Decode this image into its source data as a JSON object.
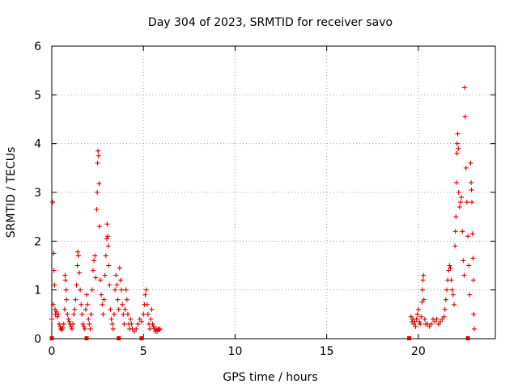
{
  "chart_data": {
    "type": "scatter",
    "title": "Day 304 of 2023, SRMTID for receiver savo",
    "xlabel": "GPS time / hours",
    "ylabel": "SRMTID / TECUs",
    "xlim": [
      0,
      24.2
    ],
    "ylim": [
      0,
      6
    ],
    "xticks": [
      0,
      5,
      10,
      15,
      20
    ],
    "yticks": [
      0,
      1,
      2,
      3,
      4,
      5,
      6
    ],
    "grid": true,
    "marker": "+",
    "color": "#e00000",
    "series": [
      {
        "name": "SRMTID",
        "points": [
          [
            0.0,
            0.4
          ],
          [
            0.05,
            2.8
          ],
          [
            0.08,
            0.7
          ],
          [
            0.1,
            1.75
          ],
          [
            0.12,
            1.4
          ],
          [
            0.15,
            1.1
          ],
          [
            0.18,
            0.6
          ],
          [
            0.2,
            0.5
          ],
          [
            0.25,
            0.55
          ],
          [
            0.3,
            0.45
          ],
          [
            0.35,
            0.5
          ],
          [
            0.4,
            0.3
          ],
          [
            0.45,
            0.25
          ],
          [
            0.5,
            0.2
          ],
          [
            0.55,
            0.18
          ],
          [
            0.6,
            0.22
          ],
          [
            0.65,
            0.3
          ],
          [
            0.7,
            0.6
          ],
          [
            0.72,
            1.3
          ],
          [
            0.75,
            1.2
          ],
          [
            0.78,
            1.0
          ],
          [
            0.8,
            0.8
          ],
          [
            0.85,
            0.5
          ],
          [
            0.9,
            0.4
          ],
          [
            0.95,
            0.35
          ],
          [
            1.0,
            0.3
          ],
          [
            1.05,
            0.25
          ],
          [
            1.1,
            0.2
          ],
          [
            1.15,
            0.3
          ],
          [
            1.2,
            0.5
          ],
          [
            1.25,
            0.6
          ],
          [
            1.3,
            0.8
          ],
          [
            1.35,
            1.1
          ],
          [
            1.4,
            1.5
          ],
          [
            1.42,
            1.78
          ],
          [
            1.45,
            1.7
          ],
          [
            1.5,
            1.35
          ],
          [
            1.55,
            1.0
          ],
          [
            1.6,
            0.7
          ],
          [
            1.65,
            0.5
          ],
          [
            1.7,
            0.3
          ],
          [
            1.75,
            0.25
          ],
          [
            1.8,
            0.2
          ],
          [
            1.85,
            0.6
          ],
          [
            1.9,
            0.9
          ],
          [
            1.95,
            0.7
          ],
          [
            2.0,
            0.4
          ],
          [
            2.05,
            0.3
          ],
          [
            2.1,
            0.2
          ],
          [
            2.15,
            0.5
          ],
          [
            2.2,
            1.0
          ],
          [
            2.25,
            1.4
          ],
          [
            2.3,
            1.6
          ],
          [
            2.35,
            1.7
          ],
          [
            2.4,
            1.25
          ],
          [
            2.45,
            2.65
          ],
          [
            2.48,
            3.0
          ],
          [
            2.5,
            3.6
          ],
          [
            2.52,
            3.85
          ],
          [
            2.55,
            3.75
          ],
          [
            2.58,
            3.18
          ],
          [
            2.6,
            2.3
          ],
          [
            2.65,
            1.2
          ],
          [
            2.7,
            0.9
          ],
          [
            2.75,
            0.7
          ],
          [
            2.8,
            0.5
          ],
          [
            2.85,
            0.8
          ],
          [
            2.9,
            1.3
          ],
          [
            2.95,
            1.7
          ],
          [
            3.0,
            2.05
          ],
          [
            3.02,
            2.35
          ],
          [
            3.05,
            2.1
          ],
          [
            3.08,
            1.9
          ],
          [
            3.1,
            1.5
          ],
          [
            3.15,
            1.1
          ],
          [
            3.2,
            0.6
          ],
          [
            3.25,
            0.4
          ],
          [
            3.3,
            0.3
          ],
          [
            3.35,
            0.2
          ],
          [
            3.4,
            0.5
          ],
          [
            3.45,
            1.0
          ],
          [
            3.5,
            1.3
          ],
          [
            3.55,
            1.1
          ],
          [
            3.6,
            0.8
          ],
          [
            3.65,
            0.6
          ],
          [
            3.7,
            1.45
          ],
          [
            3.75,
            1.2
          ],
          [
            3.8,
            1.0
          ],
          [
            3.85,
            0.7
          ],
          [
            3.9,
            0.5
          ],
          [
            3.95,
            0.3
          ],
          [
            4.0,
            0.6
          ],
          [
            4.05,
            1.0
          ],
          [
            4.1,
            0.8
          ],
          [
            4.15,
            0.5
          ],
          [
            4.2,
            0.3
          ],
          [
            4.25,
            0.2
          ],
          [
            4.3,
            0.4
          ],
          [
            4.35,
            0.3
          ],
          [
            4.4,
            0.2
          ],
          [
            4.5,
            0.15
          ],
          [
            4.6,
            0.2
          ],
          [
            4.7,
            0.3
          ],
          [
            4.8,
            0.4
          ],
          [
            4.9,
            0.35
          ],
          [
            5.0,
            0.5
          ],
          [
            5.05,
            0.7
          ],
          [
            5.1,
            0.9
          ],
          [
            5.15,
            1.0
          ],
          [
            5.2,
            0.7
          ],
          [
            5.25,
            0.5
          ],
          [
            5.3,
            0.3
          ],
          [
            5.35,
            0.2
          ],
          [
            5.4,
            0.4
          ],
          [
            5.45,
            0.6
          ],
          [
            5.5,
            0.3
          ],
          [
            5.55,
            0.25
          ],
          [
            5.6,
            0.2
          ],
          [
            5.65,
            0.15
          ],
          [
            5.7,
            0.2
          ],
          [
            5.75,
            0.15
          ],
          [
            5.8,
            0.2
          ],
          [
            5.85,
            0.18
          ],
          [
            5.9,
            0.2
          ],
          [
            19.6,
            0.45
          ],
          [
            19.65,
            0.35
          ],
          [
            19.7,
            0.4
          ],
          [
            19.75,
            0.3
          ],
          [
            19.8,
            0.35
          ],
          [
            19.85,
            0.25
          ],
          [
            19.9,
            0.4
          ],
          [
            19.95,
            0.5
          ],
          [
            20.0,
            0.6
          ],
          [
            20.05,
            0.35
          ],
          [
            20.1,
            0.3
          ],
          [
            20.15,
            0.45
          ],
          [
            20.2,
            0.75
          ],
          [
            20.22,
            1.0
          ],
          [
            20.25,
            1.2
          ],
          [
            20.28,
            1.3
          ],
          [
            20.3,
            0.8
          ],
          [
            20.35,
            0.4
          ],
          [
            20.4,
            0.3
          ],
          [
            20.5,
            0.3
          ],
          [
            20.6,
            0.25
          ],
          [
            20.7,
            0.3
          ],
          [
            20.8,
            0.4
          ],
          [
            20.9,
            0.35
          ],
          [
            21.0,
            0.4
          ],
          [
            21.1,
            0.3
          ],
          [
            21.2,
            0.35
          ],
          [
            21.3,
            0.4
          ],
          [
            21.4,
            0.45
          ],
          [
            21.45,
            0.6
          ],
          [
            21.5,
            0.8
          ],
          [
            21.55,
            1.0
          ],
          [
            21.6,
            1.2
          ],
          [
            21.65,
            1.4
          ],
          [
            21.7,
            1.5
          ],
          [
            21.75,
            1.45
          ],
          [
            21.8,
            1.2
          ],
          [
            21.85,
            1.0
          ],
          [
            21.9,
            0.9
          ],
          [
            21.95,
            0.7
          ],
          [
            22.0,
            1.9
          ],
          [
            22.02,
            2.2
          ],
          [
            22.05,
            2.5
          ],
          [
            22.08,
            3.2
          ],
          [
            22.1,
            3.8
          ],
          [
            22.12,
            4.0
          ],
          [
            22.15,
            4.2
          ],
          [
            22.18,
            3.9
          ],
          [
            22.2,
            3.0
          ],
          [
            22.25,
            2.7
          ],
          [
            22.3,
            2.8
          ],
          [
            22.35,
            2.9
          ],
          [
            22.4,
            2.2
          ],
          [
            22.45,
            1.6
          ],
          [
            22.5,
            1.3
          ],
          [
            22.52,
            5.15
          ],
          [
            22.55,
            4.55
          ],
          [
            22.6,
            3.5
          ],
          [
            22.65,
            2.8
          ],
          [
            22.7,
            2.1
          ],
          [
            22.75,
            1.5
          ],
          [
            22.8,
            0.9
          ],
          [
            22.85,
            3.6
          ],
          [
            22.88,
            3.2
          ],
          [
            22.9,
            3.05
          ],
          [
            22.92,
            2.8
          ],
          [
            22.95,
            2.15
          ],
          [
            22.98,
            1.65
          ],
          [
            23.0,
            1.2
          ],
          [
            23.02,
            0.5
          ],
          [
            23.05,
            0.2
          ]
        ]
      }
    ],
    "zero_markers": [
      0.0,
      1.9,
      3.65,
      4.9,
      19.5,
      22.7
    ],
    "zero_marker_style": "filled-square"
  }
}
